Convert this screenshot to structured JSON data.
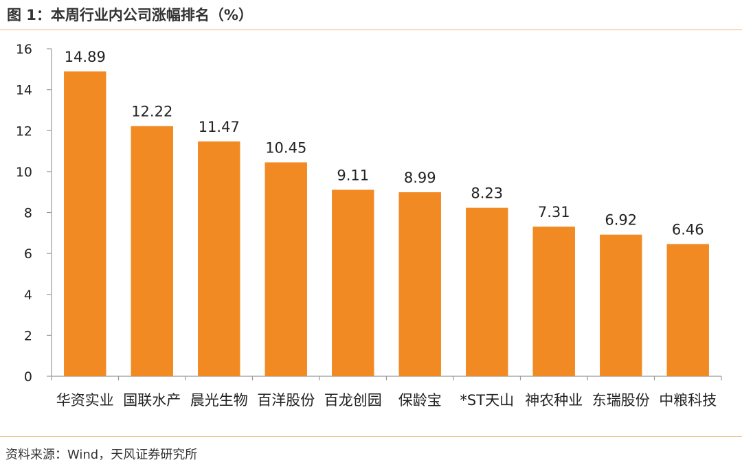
{
  "figure": {
    "title": "图 1：本周行业内公司涨幅排名（%）",
    "source": "资料来源：Wind，天风证券研究所"
  },
  "colors": {
    "bar": "#f28a24",
    "axis": "#999999",
    "rule": "#e9b27a"
  },
  "chart_data": {
    "type": "bar",
    "title": "图 1：本周行业内公司涨幅排名（%）",
    "xlabel": "",
    "ylabel": "",
    "categories": [
      "华资实业",
      "国联水产",
      "晨光生物",
      "百洋股份",
      "百龙创园",
      "保龄宝",
      "*ST天山",
      "神农种业",
      "东瑞股份",
      "中粮科技"
    ],
    "values": [
      14.89,
      12.22,
      11.47,
      10.45,
      9.11,
      8.99,
      8.23,
      7.31,
      6.92,
      6.46
    ],
    "value_labels": [
      "14.89",
      "12.22",
      "11.47",
      "10.45",
      "9.11",
      "8.99",
      "8.23",
      "7.31",
      "6.92",
      "6.46"
    ],
    "ylim": [
      0,
      16
    ],
    "yticks": [
      0,
      2,
      4,
      6,
      8,
      10,
      12,
      14,
      16
    ],
    "grid": false,
    "legend": "none"
  }
}
